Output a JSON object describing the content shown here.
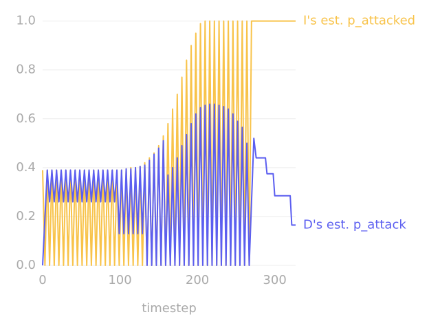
{
  "chart_data": {
    "type": "line",
    "x_label": "timestep",
    "xlim": [
      0,
      327
    ],
    "xticks": [
      0,
      100,
      200,
      300
    ],
    "ylim": [
      0,
      1.03
    ],
    "yticks": [
      {
        "value": 0,
        "label": "0.0"
      },
      {
        "value": 0.2,
        "label": "0.2"
      },
      {
        "value": 0.4,
        "label": "0.4"
      },
      {
        "value": 0.6,
        "label": "0.6"
      },
      {
        "value": 0.8,
        "label": "0.8"
      },
      {
        "value": 1.0,
        "label": "1.0"
      }
    ],
    "grid": true,
    "series": [
      {
        "name": "I's est. p_attacked",
        "color": "#f8c34a",
        "x": [
          0,
          3,
          6,
          9,
          12,
          15,
          18,
          21,
          24,
          27,
          30,
          33,
          36,
          39,
          42,
          45,
          48,
          51,
          54,
          57,
          60,
          63,
          66,
          69,
          72,
          75,
          78,
          81,
          84,
          87,
          90,
          93,
          96,
          99,
          102,
          105,
          108,
          111,
          114,
          117,
          120,
          123,
          126,
          129,
          132,
          135,
          138,
          141,
          144,
          147,
          150,
          153,
          156,
          159,
          162,
          165,
          168,
          171,
          174,
          177,
          180,
          183,
          186,
          189,
          192,
          195,
          198,
          201,
          204,
          207,
          210,
          213,
          216,
          219,
          222,
          225,
          228,
          231,
          234,
          237,
          240,
          243,
          246,
          249,
          252,
          255,
          258,
          261,
          264,
          267,
          270,
          327
        ],
        "values": [
          0.39,
          0,
          0.39,
          0,
          0.39,
          0,
          0.39,
          0,
          0.39,
          0,
          0.39,
          0,
          0.39,
          0,
          0.39,
          0,
          0.39,
          0,
          0.39,
          0,
          0.39,
          0,
          0.39,
          0,
          0.39,
          0,
          0.39,
          0,
          0.39,
          0,
          0.39,
          0,
          0.39,
          0,
          0.39,
          0,
          0.395,
          0,
          0.4,
          0,
          0.4,
          0,
          0.405,
          0,
          0.42,
          0,
          0.44,
          0,
          0.46,
          0,
          0.49,
          0,
          0.53,
          0,
          0.58,
          0,
          0.64,
          0,
          0.7,
          0,
          0.77,
          0,
          0.84,
          0,
          0.9,
          0,
          0.95,
          0,
          0.99,
          0,
          1,
          0,
          1,
          0,
          1,
          0,
          1,
          0,
          1,
          0,
          1,
          0,
          1,
          0,
          1,
          0,
          1,
          0,
          1,
          0,
          1,
          1
        ]
      },
      {
        "name": "D's est. p_attack",
        "color": "#5b5ef0",
        "x": [
          0,
          6,
          9,
          12,
          15,
          18,
          21,
          24,
          27,
          30,
          33,
          36,
          39,
          42,
          45,
          48,
          51,
          54,
          57,
          60,
          63,
          66,
          69,
          72,
          75,
          78,
          81,
          84,
          87,
          90,
          93,
          96,
          99,
          102,
          105,
          108,
          111,
          114,
          117,
          120,
          123,
          126,
          129,
          132,
          135,
          138,
          141,
          144,
          147,
          150,
          153,
          156,
          159,
          162,
          165,
          168,
          171,
          174,
          177,
          180,
          183,
          186,
          189,
          192,
          195,
          198,
          201,
          204,
          207,
          210,
          213,
          216,
          219,
          222,
          225,
          228,
          231,
          234,
          237,
          240,
          243,
          246,
          249,
          252,
          255,
          258,
          261,
          264,
          267,
          273,
          276,
          288,
          290,
          298,
          300,
          320,
          322,
          327
        ],
        "values": [
          0,
          0.39,
          0.26,
          0.39,
          0.26,
          0.39,
          0.26,
          0.39,
          0.26,
          0.39,
          0.26,
          0.39,
          0.26,
          0.39,
          0.26,
          0.39,
          0.26,
          0.39,
          0.26,
          0.39,
          0.26,
          0.39,
          0.26,
          0.39,
          0.26,
          0.39,
          0.26,
          0.39,
          0.26,
          0.39,
          0.26,
          0.39,
          0.13,
          0.39,
          0.13,
          0.395,
          0.13,
          0.395,
          0.13,
          0.4,
          0.13,
          0.405,
          0.13,
          0.41,
          0,
          0.43,
          0,
          0.455,
          0,
          0.48,
          0,
          0.51,
          0,
          0.37,
          0,
          0.4,
          0,
          0.44,
          0,
          0.49,
          0,
          0.535,
          0,
          0.58,
          0,
          0.62,
          0,
          0.645,
          0,
          0.655,
          0,
          0.66,
          0,
          0.66,
          0,
          0.655,
          0,
          0.65,
          0,
          0.64,
          0,
          0.62,
          0,
          0.59,
          0,
          0.565,
          0,
          0.5,
          0,
          0.52,
          0.44,
          0.44,
          0.375,
          0.375,
          0.285,
          0.285,
          0.165,
          0.165
        ]
      }
    ]
  }
}
